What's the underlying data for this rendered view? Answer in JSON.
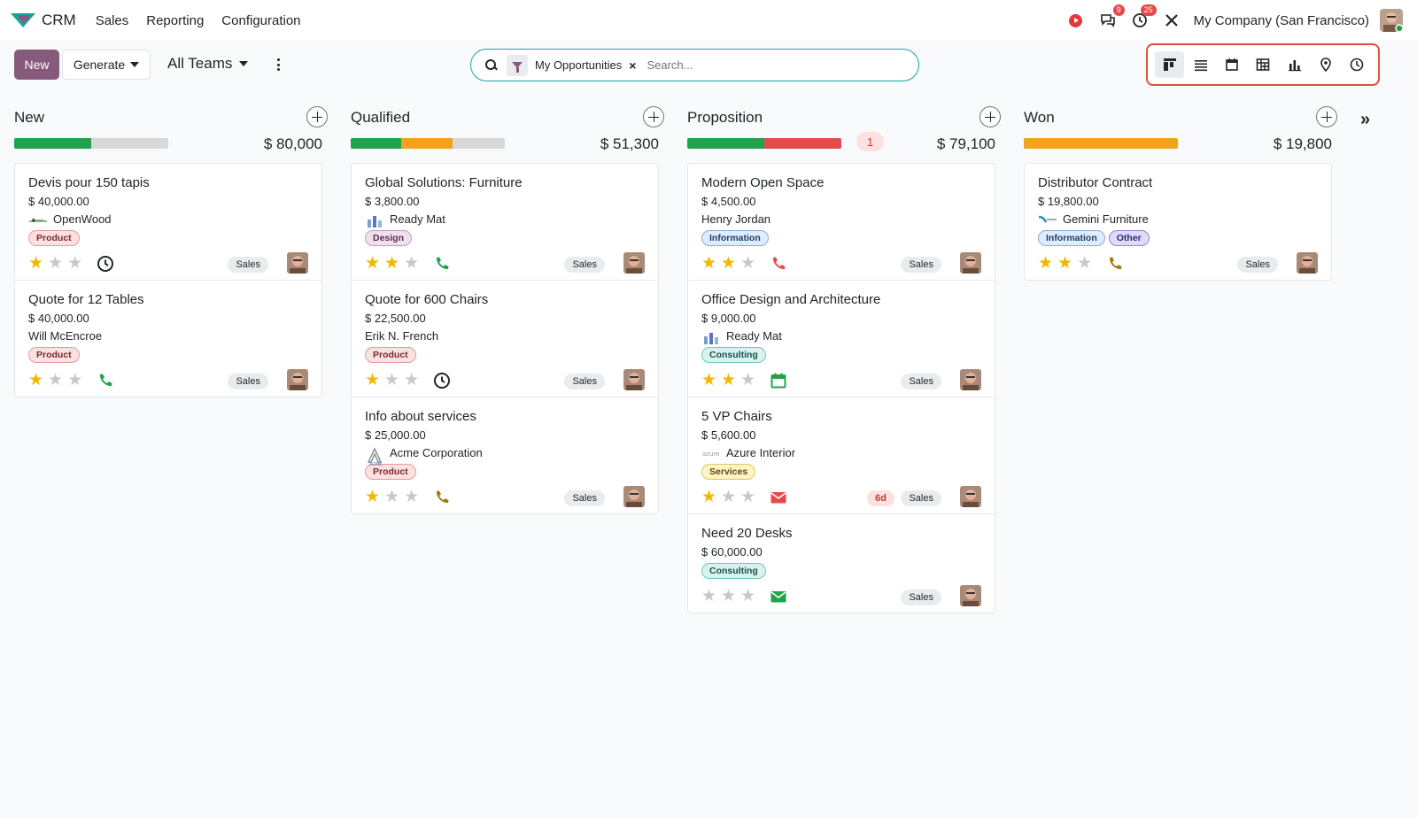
{
  "app": {
    "name": "CRM"
  },
  "menu": [
    "Sales",
    "Reporting",
    "Configuration"
  ],
  "systray": {
    "discuss_badge": "9",
    "activity_badge": "25",
    "company": "My Company (San Francisco)"
  },
  "control": {
    "new_label": "New",
    "generate_label": "Generate",
    "teams_label": "All Teams"
  },
  "search": {
    "facet": "My Opportunities",
    "placeholder": "Search..."
  },
  "views": [
    "kanban-icon",
    "list-icon",
    "calendar-icon",
    "pivot-icon",
    "graph-icon",
    "map-icon",
    "activity-icon"
  ],
  "colors": {
    "brand": "#875a7b",
    "accent": "#1ea1a1",
    "green": "#21a34b",
    "orange": "#f4a21b",
    "red": "#e54b4b",
    "grey": "#d8d8d8"
  },
  "columns": [
    {
      "title": "New",
      "total": "$ 80,000",
      "count": "",
      "progress": [
        {
          "color": "#21a34b",
          "fraction": 0.5
        },
        {
          "color": "#d8d8d8",
          "fraction": 0.5
        }
      ],
      "cards": [
        {
          "title": "Devis pour 150 tapis",
          "amount": "$ 40,000.00",
          "partner": "OpenWood",
          "logo": "openwood",
          "tags": [
            {
              "label": "Product",
              "kind": "product"
            }
          ],
          "stars": 1,
          "activity": "clock-icon",
          "activity_color": "#212529",
          "days": "",
          "sales": "Sales"
        },
        {
          "title": "Quote for 12 Tables",
          "amount": "$ 40,000.00",
          "partner": "Will McEncroe",
          "logo": "",
          "tags": [
            {
              "label": "Product",
              "kind": "product"
            }
          ],
          "stars": 1,
          "activity": "phone-icon",
          "activity_color": "#21a34b",
          "days": "",
          "sales": "Sales"
        }
      ]
    },
    {
      "title": "Qualified",
      "total": "$ 51,300",
      "count": "",
      "progress": [
        {
          "color": "#21a34b",
          "fraction": 0.33
        },
        {
          "color": "#f4a21b",
          "fraction": 0.33
        },
        {
          "color": "#d8d8d8",
          "fraction": 0.34
        }
      ],
      "cards": [
        {
          "title": "Global Solutions: Furniture",
          "amount": "$ 3,800.00",
          "partner": "Ready Mat",
          "logo": "readymat",
          "tags": [
            {
              "label": "Design",
              "kind": "design"
            }
          ],
          "stars": 2,
          "activity": "phone-icon",
          "activity_color": "#21a34b",
          "days": "",
          "sales": "Sales"
        },
        {
          "title": "Quote for 600 Chairs",
          "amount": "$ 22,500.00",
          "partner": "Erik N. French",
          "logo": "",
          "tags": [
            {
              "label": "Product",
              "kind": "product"
            }
          ],
          "stars": 1,
          "activity": "clock-icon",
          "activity_color": "#212529",
          "days": "",
          "sales": "Sales"
        },
        {
          "title": "Info about services",
          "amount": "$ 25,000.00",
          "partner": "Acme Corporation",
          "logo": "acme",
          "tags": [
            {
              "label": "Product",
              "kind": "product"
            }
          ],
          "stars": 1,
          "activity": "phone-icon",
          "activity_color": "#a37a12",
          "days": "",
          "sales": "Sales"
        }
      ]
    },
    {
      "title": "Proposition",
      "total": "$ 79,100",
      "count": "1",
      "progress": [
        {
          "color": "#21a34b",
          "fraction": 0.5
        },
        {
          "color": "#e54b4b",
          "fraction": 0.5
        }
      ],
      "cards": [
        {
          "title": "Modern Open Space",
          "amount": "$ 4,500.00",
          "partner": "Henry Jordan",
          "logo": "",
          "tags": [
            {
              "label": "Information",
              "kind": "information"
            }
          ],
          "stars": 2,
          "activity": "phone-icon",
          "activity_color": "#e54b4b",
          "days": "",
          "sales": "Sales"
        },
        {
          "title": "Office Design and Architecture",
          "amount": "$ 9,000.00",
          "partner": "Ready Mat",
          "logo": "readymat",
          "tags": [
            {
              "label": "Consulting",
              "kind": "consulting"
            }
          ],
          "stars": 2,
          "activity": "calendar-icon",
          "activity_color": "#21a34b",
          "days": "",
          "sales": "Sales"
        },
        {
          "title": "5 VP Chairs",
          "amount": "$ 5,600.00",
          "partner": "Azure Interior",
          "logo": "azure",
          "tags": [
            {
              "label": "Services",
              "kind": "services"
            }
          ],
          "stars": 1,
          "activity": "envelope-icon",
          "activity_color": "#e54b4b",
          "days": "6d",
          "sales": "Sales"
        },
        {
          "title": "Need 20 Desks",
          "amount": "$ 60,000.00",
          "partner": "",
          "logo": "",
          "tags": [
            {
              "label": "Consulting",
              "kind": "consulting"
            }
          ],
          "stars": 0,
          "activity": "envelope-icon",
          "activity_color": "#21a34b",
          "days": "",
          "sales": "Sales"
        }
      ]
    },
    {
      "title": "Won",
      "total": "$ 19,800",
      "count": "",
      "progress": [
        {
          "color": "#f4a21b",
          "fraction": 1.0
        }
      ],
      "cards": [
        {
          "title": "Distributor Contract",
          "amount": "$ 19,800.00",
          "partner": "Gemini Furniture",
          "logo": "gemini",
          "tags": [
            {
              "label": "Information",
              "kind": "information"
            },
            {
              "label": "Other",
              "kind": "other"
            }
          ],
          "stars": 2,
          "activity": "phone-icon",
          "activity_color": "#a37a12",
          "days": "",
          "sales": "Sales"
        }
      ]
    }
  ]
}
